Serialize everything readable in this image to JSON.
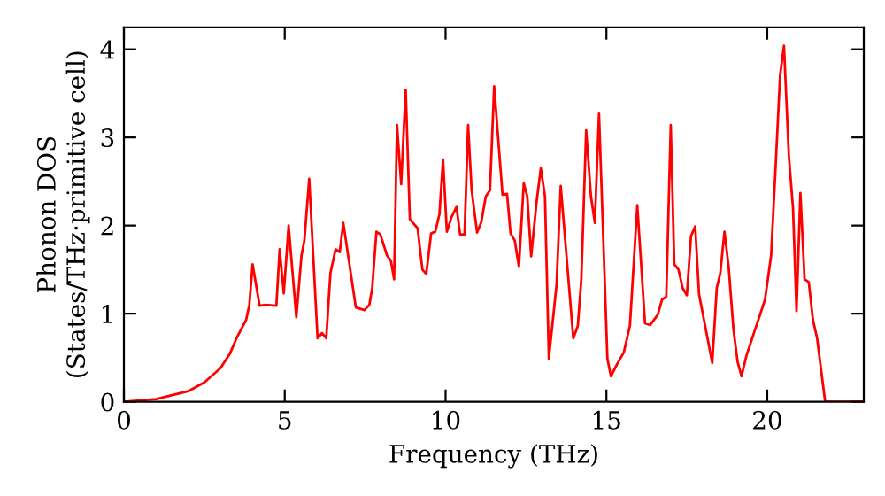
{
  "chart_data": {
    "type": "line",
    "xlabel": "Frequency (THz)",
    "ylabel": "Phonon DOS\n(States/THz·primitive cell)",
    "xlim": [
      0,
      23
    ],
    "ylim": [
      0,
      4.25
    ],
    "xticks": [
      0,
      5,
      10,
      15,
      20
    ],
    "yticks": [
      0,
      1,
      2,
      3,
      4
    ],
    "grid": false,
    "legend": false,
    "marker": "none",
    "line_style": "solid",
    "series": [
      {
        "color": "#ff0000",
        "x": [
          0,
          1,
          2,
          2.5,
          3,
          3.3,
          3.5,
          3.8,
          3.9,
          4.0,
          4.22,
          4.4,
          4.74,
          4.84,
          4.97,
          5.12,
          5.36,
          5.52,
          5.61,
          5.76,
          6.02,
          6.16,
          6.29,
          6.42,
          6.58,
          6.71,
          6.82,
          7.21,
          7.48,
          7.63,
          7.72,
          7.85,
          7.97,
          8.18,
          8.3,
          8.4,
          8.49,
          8.62,
          8.76,
          8.89,
          9.13,
          9.28,
          9.4,
          9.55,
          9.68,
          9.81,
          9.92,
          10.04,
          10.19,
          10.34,
          10.45,
          10.59,
          10.7,
          10.81,
          10.98,
          11.11,
          11.25,
          11.38,
          11.51,
          11.77,
          11.91,
          12.02,
          12.15,
          12.28,
          12.43,
          12.54,
          12.66,
          12.83,
          12.96,
          13.09,
          13.21,
          13.45,
          13.58,
          13.97,
          14.11,
          14.22,
          14.37,
          14.52,
          14.64,
          14.77,
          15.03,
          15.14,
          15.32,
          15.54,
          15.73,
          15.96,
          16.2,
          16.36,
          16.6,
          16.73,
          16.86,
          17.0,
          17.11,
          17.24,
          17.37,
          17.5,
          17.63,
          17.76,
          17.88,
          18.29,
          18.43,
          18.54,
          18.67,
          18.8,
          18.95,
          19.08,
          19.2,
          19.35,
          19.53,
          19.75,
          19.93,
          20.12,
          20.26,
          20.4,
          20.52,
          20.67,
          20.8,
          20.91,
          21.03,
          21.16,
          21.29,
          21.42,
          21.55,
          21.8,
          23
        ],
        "values": [
          0,
          0.03,
          0.12,
          0.22,
          0.38,
          0.55,
          0.72,
          0.93,
          1.1,
          1.56,
          1.09,
          1.1,
          1.09,
          1.73,
          1.23,
          2.0,
          0.96,
          1.66,
          1.83,
          2.53,
          0.72,
          0.78,
          0.72,
          1.46,
          1.73,
          1.7,
          2.03,
          1.07,
          1.04,
          1.1,
          1.29,
          1.93,
          1.9,
          1.66,
          1.6,
          1.39,
          3.14,
          2.47,
          3.54,
          2.07,
          1.97,
          1.5,
          1.45,
          1.91,
          1.93,
          2.13,
          2.75,
          1.93,
          2.1,
          2.21,
          1.9,
          1.9,
          3.14,
          2.4,
          1.92,
          2.04,
          2.33,
          2.4,
          3.58,
          2.35,
          2.36,
          1.91,
          1.83,
          1.53,
          2.48,
          2.33,
          1.65,
          2.27,
          2.65,
          2.33,
          0.49,
          1.33,
          2.45,
          0.72,
          0.86,
          1.39,
          3.08,
          2.33,
          2.03,
          3.27,
          0.49,
          0.29,
          0.42,
          0.56,
          0.86,
          2.23,
          0.89,
          0.87,
          0.99,
          1.16,
          1.19,
          3.14,
          1.56,
          1.5,
          1.29,
          1.21,
          1.88,
          1.99,
          1.22,
          0.44,
          1.29,
          1.46,
          1.93,
          1.53,
          0.82,
          0.45,
          0.29,
          0.52,
          0.72,
          0.96,
          1.16,
          1.66,
          2.67,
          3.71,
          4.04,
          2.8,
          2.2,
          1.03,
          2.37,
          1.39,
          1.36,
          0.93,
          0.72,
          0,
          0
        ]
      }
    ]
  }
}
